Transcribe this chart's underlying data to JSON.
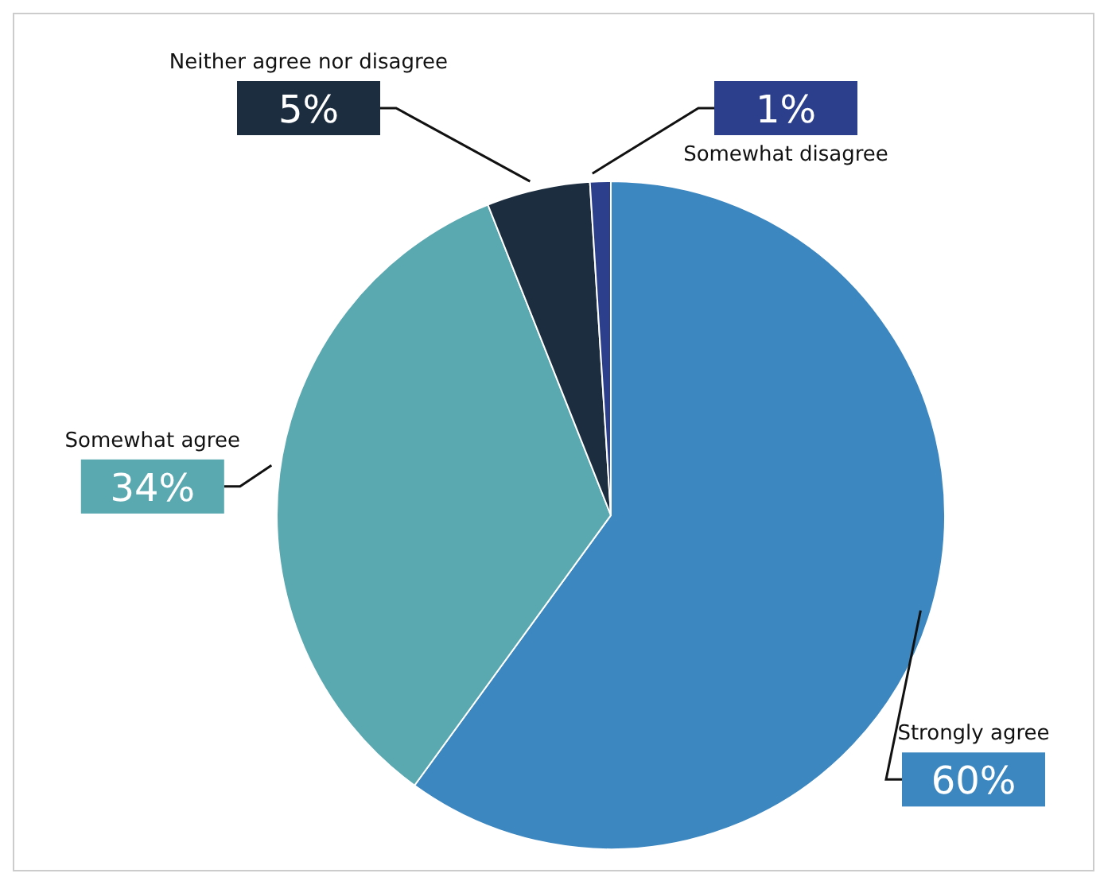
{
  "chart_data": {
    "type": "pie",
    "categories": [
      "Strongly agree",
      "Somewhat agree",
      "Neither agree nor disagree",
      "Somewhat disagree"
    ],
    "values": [
      60,
      34,
      5,
      1
    ],
    "colors": [
      "#3d87c0",
      "#5aa8b0",
      "#1c2d40",
      "#2c3f8c"
    ],
    "value_labels": [
      "60%",
      "34%",
      "5%",
      "1%"
    ]
  }
}
